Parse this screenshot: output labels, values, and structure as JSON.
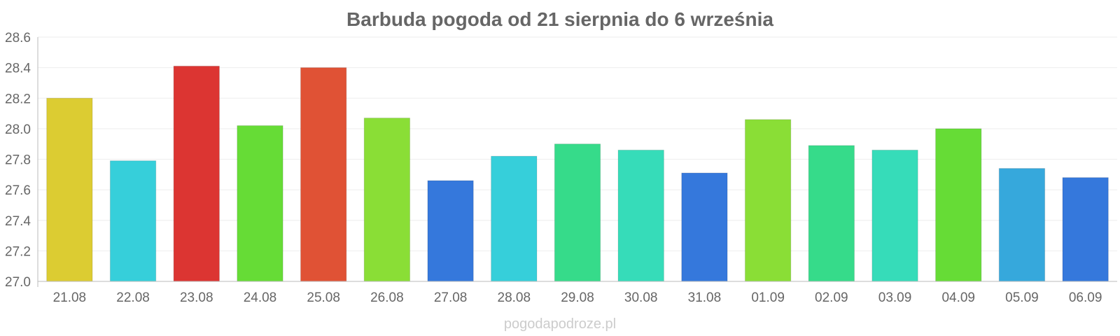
{
  "chart_data": {
    "type": "bar",
    "title": "Barbuda pogoda od 21 sierpnia do 6 września",
    "xlabel": "",
    "ylabel": "",
    "ylim": [
      27.0,
      28.6
    ],
    "yticks": [
      "27.0",
      "27.2",
      "27.4",
      "27.6",
      "27.8",
      "28.0",
      "28.2",
      "28.4",
      "28.6"
    ],
    "categories": [
      "21.08",
      "22.08",
      "23.08",
      "24.08",
      "25.08",
      "26.08",
      "27.08",
      "28.08",
      "29.08",
      "30.08",
      "31.08",
      "01.09",
      "02.09",
      "03.09",
      "04.09",
      "05.09",
      "06.09"
    ],
    "values": [
      28.2,
      27.79,
      28.41,
      28.02,
      28.4,
      28.07,
      27.66,
      27.82,
      27.9,
      27.86,
      27.71,
      28.06,
      27.89,
      27.86,
      28.0,
      27.74,
      27.68
    ],
    "colors": [
      "#dccc32",
      "#36cfda",
      "#dc3532",
      "#66dc36",
      "#e05235",
      "#8ade36",
      "#3578dc",
      "#36cfda",
      "#36db8a",
      "#36dcb9",
      "#3578dc",
      "#8ade36",
      "#36db8a",
      "#36dcb9",
      "#66dc36",
      "#36a8dc",
      "#3578dc"
    ],
    "grid": true,
    "legend": "none"
  },
  "watermark": "pogodapodroze.pl"
}
